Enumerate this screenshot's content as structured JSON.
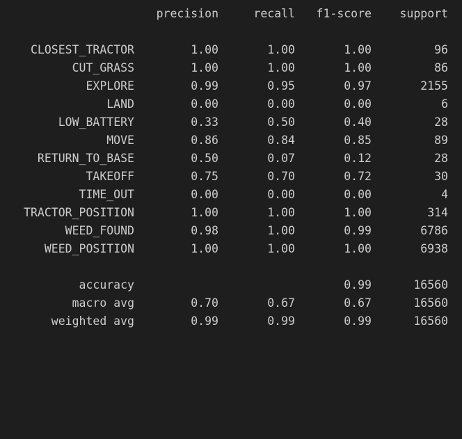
{
  "headers": {
    "precision": "precision",
    "recall": "recall",
    "f1": "f1-score",
    "support": "support"
  },
  "rows": [
    {
      "label": "CLOSEST_TRACTOR",
      "precision": "1.00",
      "recall": "1.00",
      "f1": "1.00",
      "support": "96"
    },
    {
      "label": "CUT_GRASS",
      "precision": "1.00",
      "recall": "1.00",
      "f1": "1.00",
      "support": "86"
    },
    {
      "label": "EXPLORE",
      "precision": "0.99",
      "recall": "0.95",
      "f1": "0.97",
      "support": "2155"
    },
    {
      "label": "LAND",
      "precision": "0.00",
      "recall": "0.00",
      "f1": "0.00",
      "support": "6"
    },
    {
      "label": "LOW_BATTERY",
      "precision": "0.33",
      "recall": "0.50",
      "f1": "0.40",
      "support": "28"
    },
    {
      "label": "MOVE",
      "precision": "0.86",
      "recall": "0.84",
      "f1": "0.85",
      "support": "89"
    },
    {
      "label": "RETURN_TO_BASE",
      "precision": "0.50",
      "recall": "0.07",
      "f1": "0.12",
      "support": "28"
    },
    {
      "label": "TAKEOFF",
      "precision": "0.75",
      "recall": "0.70",
      "f1": "0.72",
      "support": "30"
    },
    {
      "label": "TIME_OUT",
      "precision": "0.00",
      "recall": "0.00",
      "f1": "0.00",
      "support": "4"
    },
    {
      "label": "TRACTOR_POSITION",
      "precision": "1.00",
      "recall": "1.00",
      "f1": "1.00",
      "support": "314"
    },
    {
      "label": "WEED_FOUND",
      "precision": "0.98",
      "recall": "1.00",
      "f1": "0.99",
      "support": "6786"
    },
    {
      "label": "WEED_POSITION",
      "precision": "1.00",
      "recall": "1.00",
      "f1": "1.00",
      "support": "6938"
    }
  ],
  "summary": [
    {
      "label": "accuracy",
      "precision": "",
      "recall": "",
      "f1": "0.99",
      "support": "16560"
    },
    {
      "label": "macro avg",
      "precision": "0.70",
      "recall": "0.67",
      "f1": "0.67",
      "support": "16560"
    },
    {
      "label": "weighted avg",
      "precision": "0.99",
      "recall": "0.99",
      "f1": "0.99",
      "support": "16560"
    }
  ]
}
